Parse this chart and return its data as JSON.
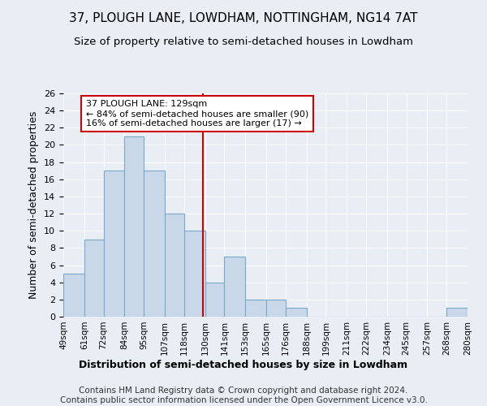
{
  "title": "37, PLOUGH LANE, LOWDHAM, NOTTINGHAM, NG14 7AT",
  "subtitle": "Size of property relative to semi-detached houses in Lowdham",
  "xlabel": "Distribution of semi-detached houses by size in Lowdham",
  "ylabel": "Number of semi-detached properties",
  "footer_line1": "Contains HM Land Registry data © Crown copyright and database right 2024.",
  "footer_line2": "Contains public sector information licensed under the Open Government Licence v3.0.",
  "bin_labels": [
    "49sqm",
    "61sqm",
    "72sqm",
    "84sqm",
    "95sqm",
    "107sqm",
    "118sqm",
    "130sqm",
    "141sqm",
    "153sqm",
    "165sqm",
    "176sqm",
    "188sqm",
    "199sqm",
    "211sqm",
    "222sqm",
    "234sqm",
    "245sqm",
    "257sqm",
    "268sqm",
    "280sqm"
  ],
  "bin_edges": [
    49,
    61,
    72,
    84,
    95,
    107,
    118,
    130,
    141,
    153,
    165,
    176,
    188,
    199,
    211,
    222,
    234,
    245,
    257,
    268,
    280
  ],
  "counts": [
    5,
    9,
    17,
    21,
    17,
    12,
    10,
    4,
    7,
    2,
    2,
    1,
    0,
    0,
    0,
    0,
    0,
    0,
    0,
    1
  ],
  "bar_color": "#c8d8e8",
  "bar_edge_color": "#7aa8c8",
  "property_value": 129,
  "vline_color": "#cc0000",
  "annotation_text": "37 PLOUGH LANE: 129sqm\n← 84% of semi-detached houses are smaller (90)\n16% of semi-detached houses are larger (17) →",
  "annotation_box_color": "#ffffff",
  "annotation_box_edge": "#cc0000",
  "ylim": [
    0,
    26
  ],
  "yticks": [
    0,
    2,
    4,
    6,
    8,
    10,
    12,
    14,
    16,
    18,
    20,
    22,
    24,
    26
  ],
  "background_color": "#e8eef4",
  "grid_color": "#ffffff",
  "title_fontsize": 11,
  "subtitle_fontsize": 9.5,
  "xlabel_fontsize": 9,
  "ylabel_fontsize": 9,
  "footer_fontsize": 7.5
}
